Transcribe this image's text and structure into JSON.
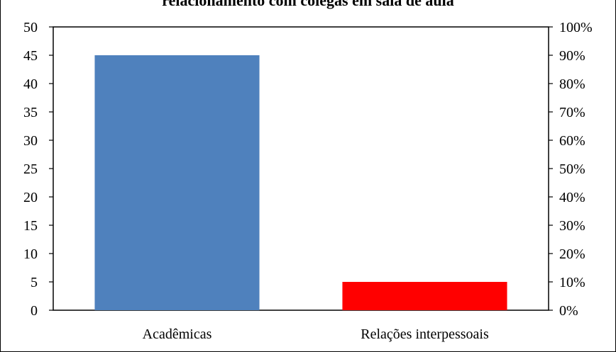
{
  "chart_data": {
    "type": "bar",
    "title": "relacionamento com colegas em sala de aula",
    "categories": [
      "Acadêmicas",
      "Relações interpessoais"
    ],
    "values": [
      45,
      5
    ],
    "colors": [
      "#4F81BD",
      "#FF0000"
    ],
    "ylim": [
      0,
      50
    ],
    "yticks": [
      "0",
      "5",
      "10",
      "15",
      "20",
      "25",
      "30",
      "35",
      "40",
      "45",
      "50"
    ],
    "y2ticks": [
      "0%",
      "10%",
      "20%",
      "30%",
      "40%",
      "50%",
      "60%",
      "70%",
      "80%",
      "90%",
      "100%"
    ],
    "grid": false,
    "legend": "none"
  }
}
